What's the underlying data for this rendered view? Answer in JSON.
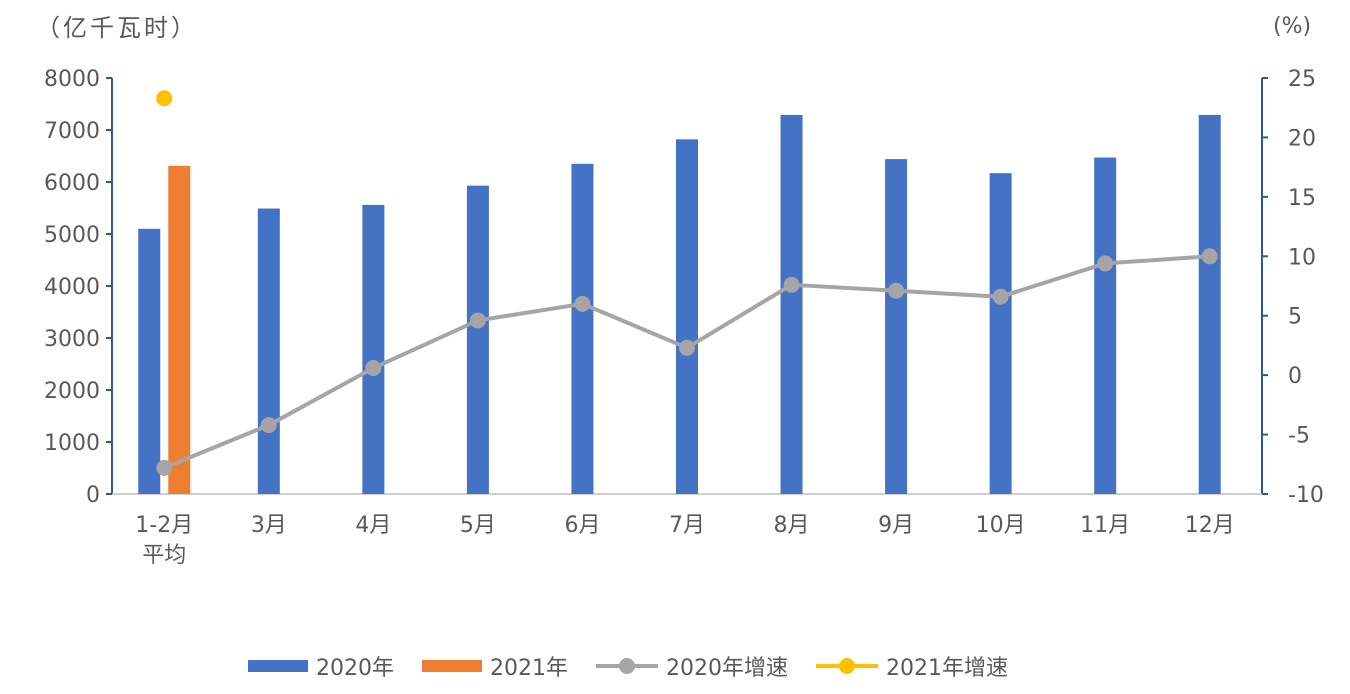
{
  "chart_data": {
    "type": "bar",
    "left_unit": "（亿千瓦时）",
    "right_unit": "(%)",
    "categories": [
      [
        "1-2月",
        "平均"
      ],
      [
        "3月"
      ],
      [
        "4月"
      ],
      [
        "5月"
      ],
      [
        "6月"
      ],
      [
        "7月"
      ],
      [
        "8月"
      ],
      [
        "9月"
      ],
      [
        "10月"
      ],
      [
        "11月"
      ],
      [
        "12月"
      ]
    ],
    "y_left": {
      "min": 0,
      "max": 8000,
      "ticks": [
        0,
        1000,
        2000,
        3000,
        4000,
        5000,
        6000,
        7000,
        8000
      ]
    },
    "y_right": {
      "min": -10,
      "max": 25,
      "ticks": [
        -10,
        -5,
        0,
        5,
        10,
        15,
        20,
        25
      ]
    },
    "series": [
      {
        "name": "2020年",
        "type": "bar",
        "axis": "left",
        "color": "#4472C4",
        "values": [
          5100,
          5490,
          5560,
          5930,
          6350,
          6820,
          7290,
          6440,
          6170,
          6470,
          7290
        ]
      },
      {
        "name": "2021年",
        "type": "bar",
        "axis": "left",
        "color": "#ED7D31",
        "values": [
          6310,
          null,
          null,
          null,
          null,
          null,
          null,
          null,
          null,
          null,
          null
        ]
      },
      {
        "name": "2020年增速",
        "type": "line",
        "axis": "right",
        "color": "#A5A5A5",
        "values": [
          -7.8,
          -4.2,
          0.6,
          4.6,
          6.0,
          2.3,
          7.6,
          7.1,
          6.6,
          9.4,
          10.0
        ]
      },
      {
        "name": "2021年增速",
        "type": "line",
        "axis": "right",
        "color": "#FFC000",
        "values": [
          23.3,
          null,
          null,
          null,
          null,
          null,
          null,
          null,
          null,
          null,
          null
        ]
      }
    ],
    "grid": false,
    "legend_position": "bottom"
  }
}
